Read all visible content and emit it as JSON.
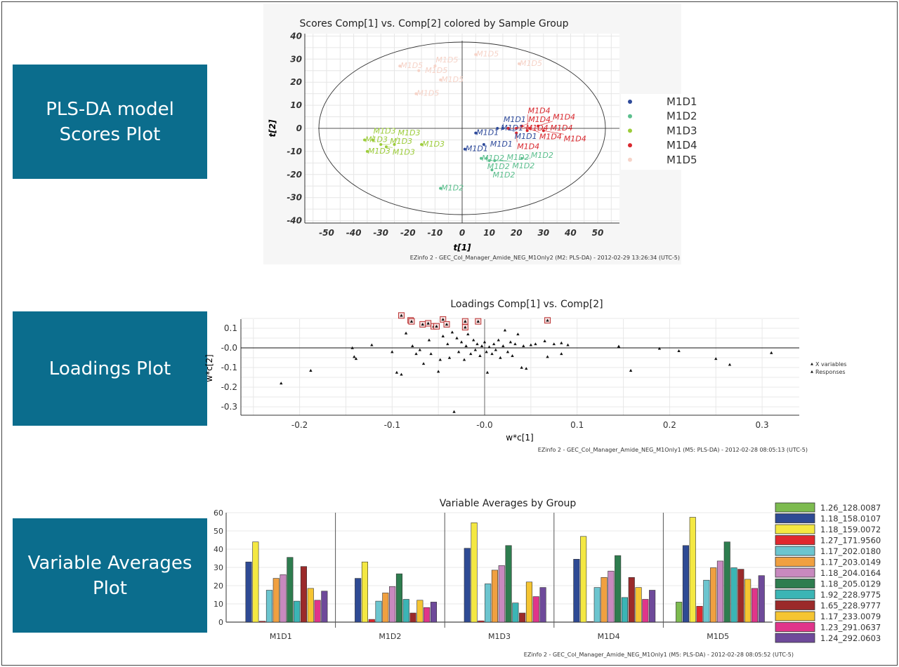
{
  "labels": {
    "scores": "PLS-DA model\nScores Plot",
    "loadings": "Loadings Plot",
    "averages": "Variable Averages\nPlot"
  },
  "chart_data": [
    {
      "type": "scatter",
      "title": "Scores Comp[1] vs. Comp[2] colored by Sample Group",
      "xlabel": "t[1]",
      "ylabel": "t[2]",
      "xlim": [
        -57,
        58
      ],
      "ylim": [
        -41,
        41
      ],
      "xticks": [
        -50,
        -40,
        -30,
        -20,
        -10,
        0,
        10,
        20,
        30,
        40,
        50
      ],
      "yticks": [
        40,
        30,
        20,
        10,
        0,
        -10,
        -20,
        -30,
        -40
      ],
      "grid": true,
      "legend": "right",
      "footer": "EZinfo 2 - GEC_Col_Manager_Amide_NEG_M1Only2 (M2: PLS-DA) - 2012-02-29 13:26:34 (UTC-5)",
      "series": [
        {
          "name": "M1D1",
          "color": "#2e4a9a",
          "points": [
            [
              5,
              -2
            ],
            [
              1,
              -9
            ],
            [
              8,
              -7
            ],
            [
              13,
              0
            ],
            [
              15,
              0
            ],
            [
              17,
              0
            ]
          ]
        },
        {
          "name": "M1D2",
          "color": "#5cbf8e",
          "points": [
            [
              7,
              -13
            ],
            [
              9,
              -13
            ],
            [
              10,
              -14
            ],
            [
              12,
              -14
            ],
            [
              22,
              -13
            ],
            [
              11,
              -18
            ],
            [
              -8,
              -26
            ]
          ]
        },
        {
          "name": "M1D3",
          "color": "#9ccc3a",
          "points": [
            [
              -36,
              -5
            ],
            [
              -35,
              -10
            ],
            [
              -33,
              -5
            ],
            [
              -30,
              -7
            ],
            [
              -28,
              -8
            ],
            [
              -25,
              -7
            ],
            [
              -15,
              -7
            ]
          ]
        },
        {
          "name": "M1D4",
          "color": "#d9282e",
          "points": [
            [
              17,
              0
            ],
            [
              20,
              0
            ],
            [
              22,
              1
            ],
            [
              25,
              0
            ],
            [
              28,
              1
            ],
            [
              30,
              -1
            ],
            [
              20,
              -2
            ],
            [
              24,
              -1
            ]
          ]
        },
        {
          "name": "M1D5",
          "color": "#f6d3c8",
          "points": [
            [
              5,
              32
            ],
            [
              -23,
              27
            ],
            [
              -16,
              25
            ],
            [
              -10,
              27
            ],
            [
              -8,
              21
            ],
            [
              -17,
              15
            ],
            [
              21,
              28
            ]
          ]
        }
      ]
    },
    {
      "type": "scatter",
      "title": "Loadings Comp[1] vs. Comp[2]",
      "xlabel": "w*c[1]",
      "ylabel": "w*c[2]",
      "xlim": [
        -0.263,
        0.34
      ],
      "ylim": [
        -0.345,
        0.16
      ],
      "xticks": [
        "-0.2",
        "-0.1",
        "-0.0",
        "0.1",
        "0.2",
        "0.3"
      ],
      "xtick_values": [
        -0.2,
        -0.1,
        0,
        0.1,
        0.2,
        0.3
      ],
      "yticks": [
        "0.1",
        "-0.0",
        "-0.1",
        "-0.2",
        "-0.3"
      ],
      "ytick_values": [
        0.1,
        0,
        -0.1,
        -0.2,
        -0.3
      ],
      "grid": true,
      "legend": "right",
      "legend_entries": [
        "X variables",
        "Responses"
      ],
      "footer": "EZinfo 2 - GEC_Col_Manager_Amide_NEG_M1Only1 (M5: PLS-DA) - 2012-02-28 08:05:13 (UTC-5)",
      "highlighted": [
        [
          -0.09,
          0.165
        ],
        [
          -0.08,
          0.14
        ],
        [
          -0.079,
          0.135
        ],
        [
          -0.067,
          0.12
        ],
        [
          -0.061,
          0.125
        ],
        [
          -0.055,
          0.11
        ],
        [
          -0.052,
          0.11
        ],
        [
          -0.045,
          0.145
        ],
        [
          -0.041,
          0.12
        ],
        [
          -0.021,
          0.135
        ],
        [
          -0.021,
          0.105
        ],
        [
          -0.007,
          0.135
        ],
        [
          0.068,
          0.14
        ]
      ],
      "points": [
        [
          -0.22,
          -0.18
        ],
        [
          -0.188,
          -0.115
        ],
        [
          -0.143,
          0
        ],
        [
          -0.141,
          -0.045
        ],
        [
          -0.139,
          -0.055
        ],
        [
          -0.122,
          0.015
        ],
        [
          -0.1,
          -0.02
        ],
        [
          -0.095,
          -0.125
        ],
        [
          -0.09,
          -0.135
        ],
        [
          -0.085,
          0.075
        ],
        [
          -0.078,
          0.01
        ],
        [
          -0.074,
          -0.03
        ],
        [
          -0.07,
          -0.01
        ],
        [
          -0.066,
          -0.08
        ],
        [
          -0.06,
          0.04
        ],
        [
          -0.058,
          -0.03
        ],
        [
          -0.05,
          -0.12
        ],
        [
          -0.048,
          -0.06
        ],
        [
          -0.045,
          0.06
        ],
        [
          -0.04,
          0.02
        ],
        [
          -0.038,
          -0.05
        ],
        [
          -0.035,
          0.08
        ],
        [
          -0.033,
          -0.325
        ],
        [
          -0.03,
          0.05
        ],
        [
          -0.028,
          -0.02
        ],
        [
          -0.025,
          0.03
        ],
        [
          -0.022,
          -0.06
        ],
        [
          -0.02,
          0.01
        ],
        [
          -0.018,
          0.07
        ],
        [
          -0.015,
          -0.03
        ],
        [
          -0.012,
          0.04
        ],
        [
          -0.01,
          -0.01
        ],
        [
          -0.008,
          0.02
        ],
        [
          -0.005,
          -0.04
        ],
        [
          -0.003,
          0.01
        ],
        [
          0,
          0.03
        ],
        [
          0.002,
          -0.02
        ],
        [
          0.003,
          -0.125
        ],
        [
          0.005,
          0.005
        ],
        [
          0.008,
          -0.03
        ],
        [
          0.01,
          0.02
        ],
        [
          0.012,
          -0.01
        ],
        [
          0.015,
          0.04
        ],
        [
          0.017,
          -0.05
        ],
        [
          0.02,
          0.01
        ],
        [
          0.022,
          0.09
        ],
        [
          0.025,
          -0.02
        ],
        [
          0.028,
          0.03
        ],
        [
          0.03,
          -0.04
        ],
        [
          0.033,
          0.02
        ],
        [
          0.036,
          0.07
        ],
        [
          0.04,
          -0.1
        ],
        [
          0.042,
          0.01
        ],
        [
          0.045,
          -0.105
        ],
        [
          0.05,
          0.015
        ],
        [
          0.055,
          0.02
        ],
        [
          0.065,
          0.035
        ],
        [
          0.068,
          -0.045
        ],
        [
          0.075,
          0.02
        ],
        [
          0.083,
          0.025
        ],
        [
          0.083,
          -0.03
        ],
        [
          0.09,
          0.015
        ],
        [
          0.145,
          0.008
        ],
        [
          0.158,
          -0.115
        ],
        [
          0.189,
          -0.003
        ],
        [
          0.21,
          -0.015
        ],
        [
          0.25,
          -0.055
        ],
        [
          0.265,
          -0.085
        ],
        [
          0.31,
          -0.025
        ]
      ]
    },
    {
      "type": "bar",
      "title": "Variable Averages by Group",
      "categories": [
        "M1D1",
        "M1D2",
        "M1D3",
        "M1D4",
        "M1D5"
      ],
      "ylim": [
        0,
        60
      ],
      "yticks": [
        0,
        10,
        20,
        30,
        40,
        50,
        60
      ],
      "grid": true,
      "legend": "right",
      "footer": "EZinfo 2 - GEC_Col_Manager_Amide_NEG_M1Only1 (M5: PLS-DA) - 2012-02-28 08:05:52 (UTC-5)",
      "series": [
        {
          "name": "1.26_128.0087",
          "color": "#7dbb4f",
          "values": [
            0,
            0,
            0,
            0,
            11
          ]
        },
        {
          "name": "1.18_158.0107",
          "color": "#2e4a94",
          "values": [
            33,
            24,
            40.5,
            34.5,
            42
          ]
        },
        {
          "name": "1.18_159.0072",
          "color": "#f4e842",
          "values": [
            44,
            33,
            54.5,
            47,
            57.5
          ]
        },
        {
          "name": "1.27_171.9560",
          "color": "#e0282e",
          "values": [
            0.5,
            1.5,
            0.7,
            0.3,
            8.7
          ]
        },
        {
          "name": "1.17_202.0180",
          "color": "#6cc5cf",
          "values": [
            17.5,
            11.5,
            21,
            19,
            23
          ]
        },
        {
          "name": "1.17_203.0149",
          "color": "#f0a040",
          "values": [
            24,
            16,
            28.5,
            24.5,
            29.8
          ]
        },
        {
          "name": "1.18_204.0164",
          "color": "#c889bf",
          "values": [
            26,
            19.5,
            31,
            28,
            33.5
          ]
        },
        {
          "name": "1.18_205.0129",
          "color": "#2e7d4f",
          "values": [
            35.5,
            26.5,
            42,
            36.5,
            44
          ]
        },
        {
          "name": "1.92_228.9775",
          "color": "#3bb5b5",
          "values": [
            11.5,
            12.5,
            10.5,
            13.5,
            29.8
          ]
        },
        {
          "name": "1.65_228.9777",
          "color": "#9b2a2a",
          "values": [
            30.5,
            5,
            5,
            24.5,
            29
          ]
        },
        {
          "name": "1.17_233.0079",
          "color": "#f5c532",
          "values": [
            18.5,
            12,
            22,
            19,
            23.5
          ]
        },
        {
          "name": "1.23_291.0637",
          "color": "#e0358a",
          "values": [
            12,
            8,
            14,
            12.5,
            18.5
          ]
        },
        {
          "name": "1.24_292.0603",
          "color": "#6e4a9a",
          "values": [
            17,
            11,
            19,
            17.5,
            25.5
          ]
        }
      ]
    }
  ]
}
